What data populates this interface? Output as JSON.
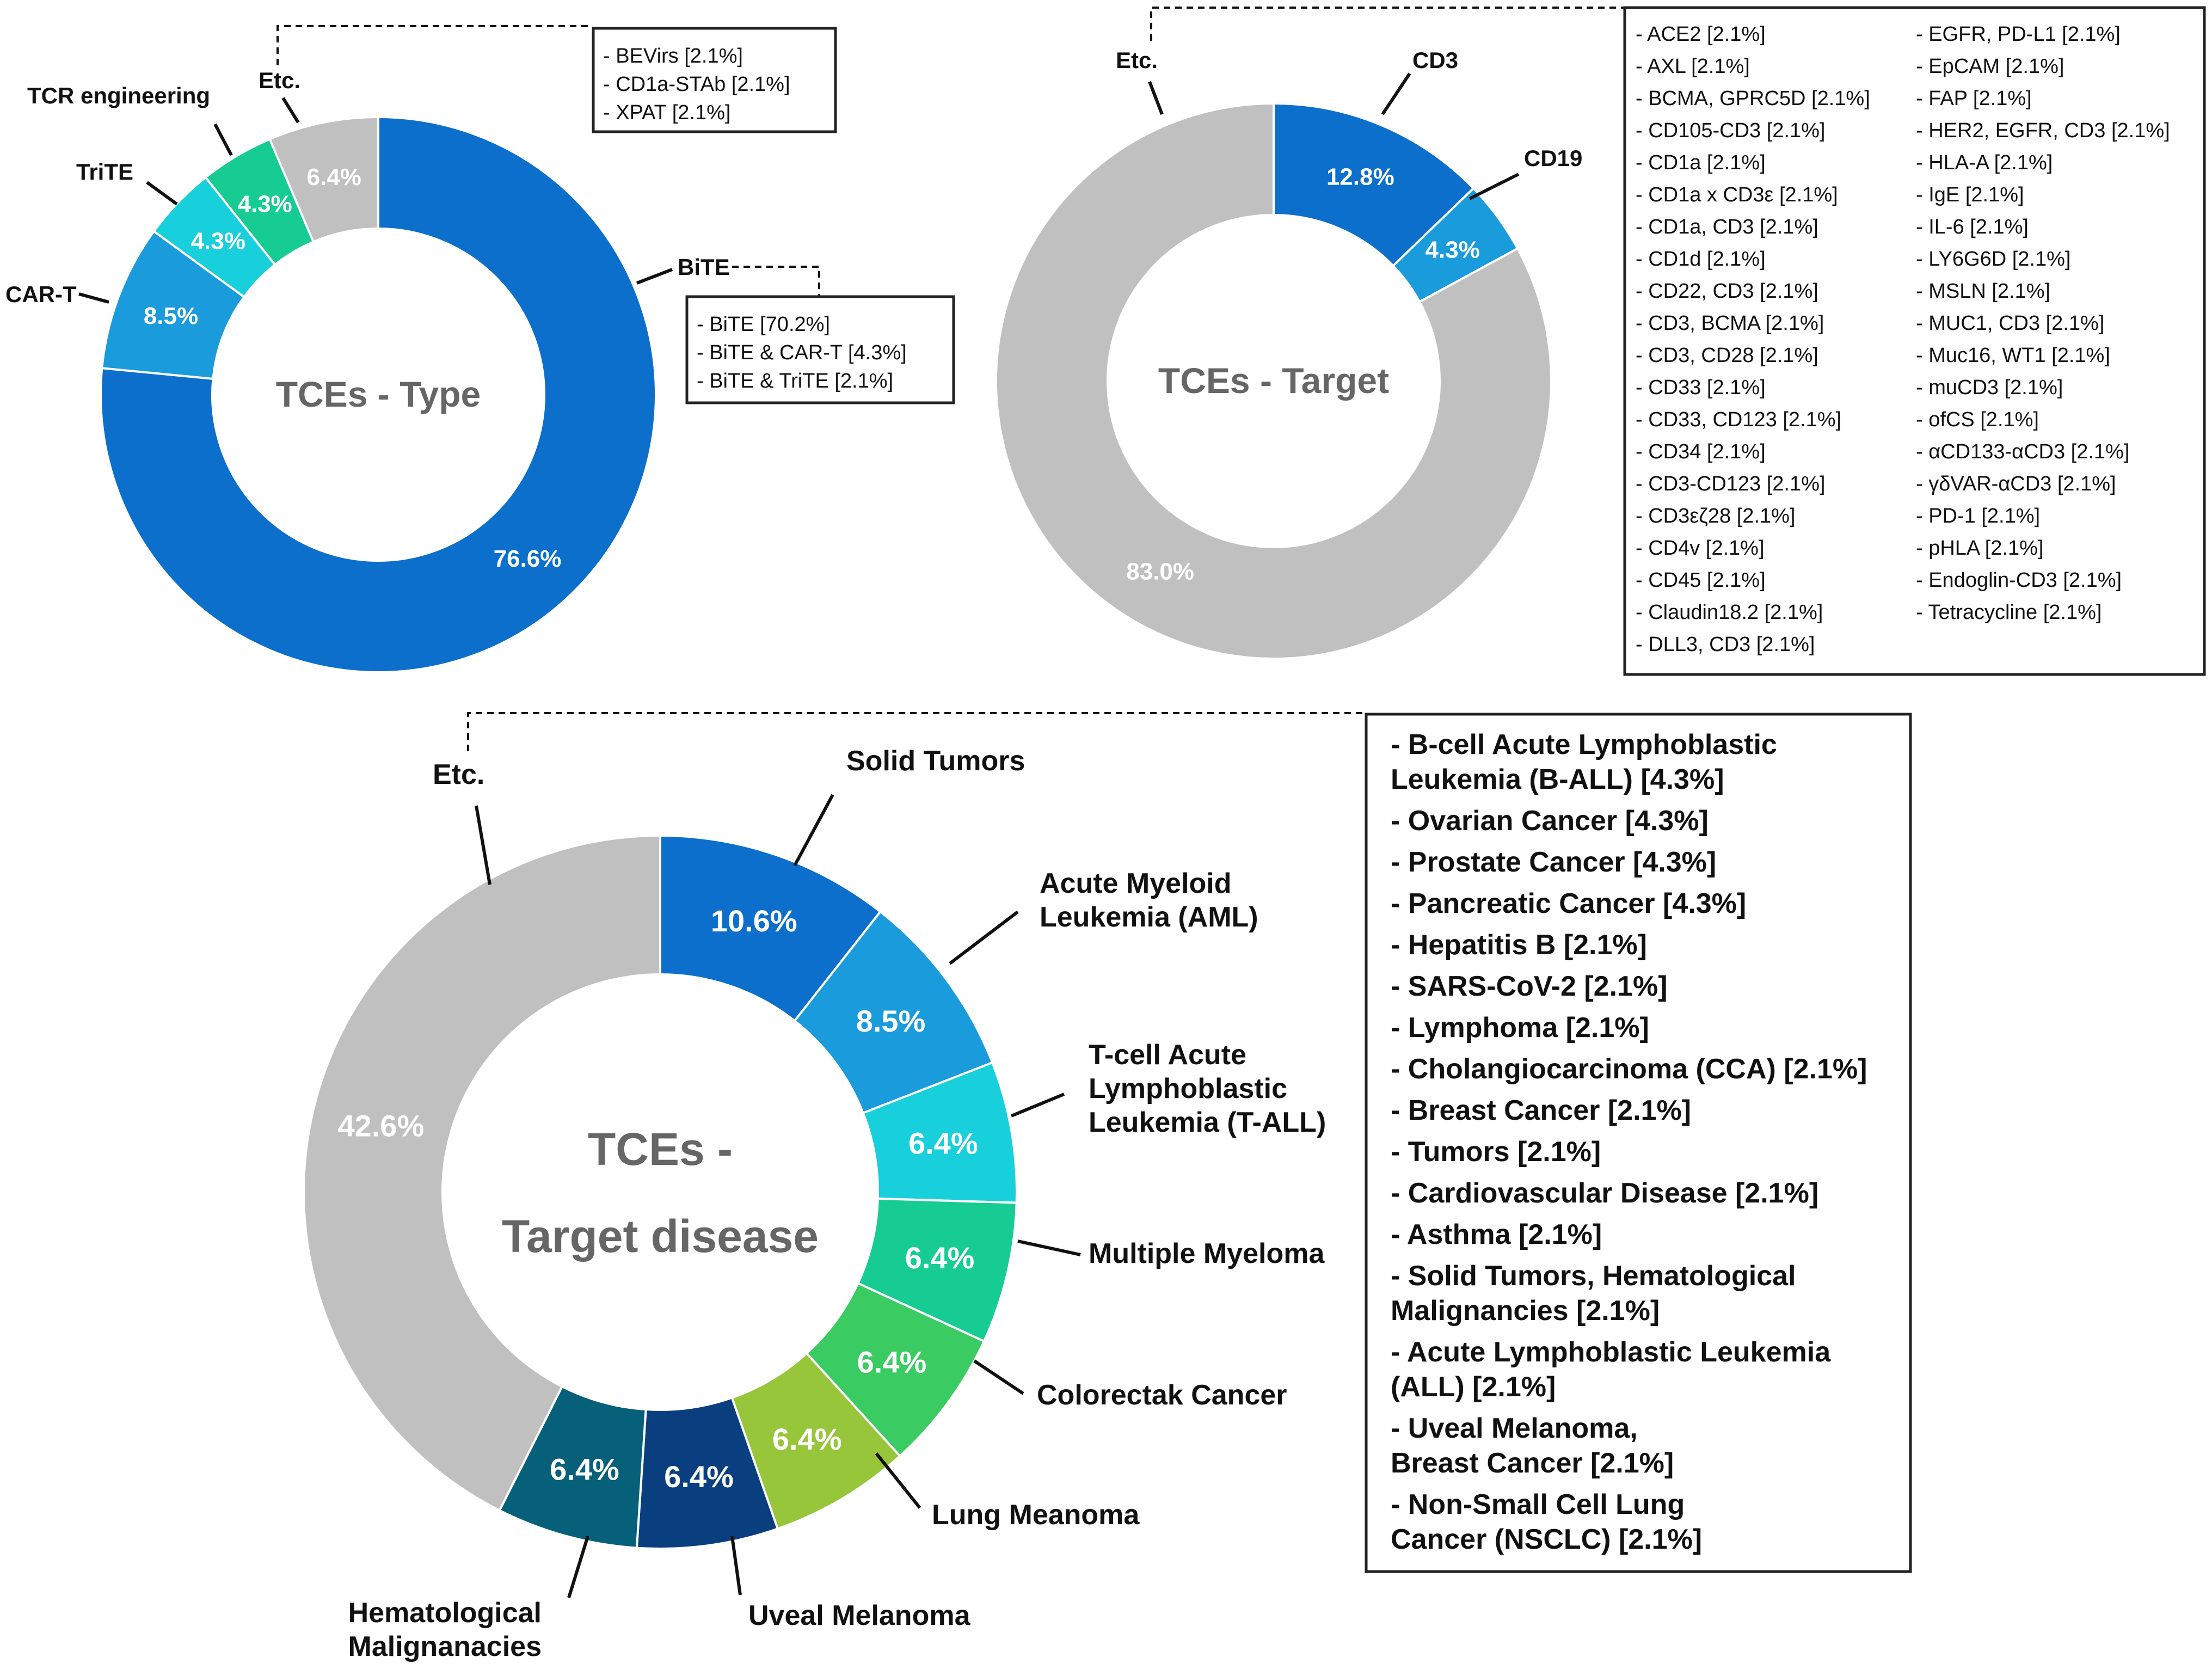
{
  "chart_data": [
    {
      "type": "pie",
      "title": "TCEs - Type",
      "center_label": "TCEs - Type",
      "categories": [
        "BiTE",
        "CAR-T",
        "TriTE",
        "TCR engineering",
        "Etc."
      ],
      "values": [
        76.6,
        8.5,
        4.3,
        4.3,
        6.4
      ],
      "value_labels": [
        "76.6%",
        "8.5%",
        "4.3%",
        "4.3%",
        "6.4%"
      ],
      "colors": [
        "#0B6FCB",
        "#1A9BDB",
        "#17D0DC",
        "#16CC92",
        "#C0C0C0"
      ],
      "detail_boxes": [
        {
          "for": "BiTE",
          "items": [
            "- BiTE [70.2%]",
            "- BiTE & CAR-T [4.3%]",
            "- BiTE & TriTE [2.1%]"
          ]
        },
        {
          "for": "Etc.",
          "items": [
            "- BEVirs [2.1%]",
            "- CD1a-STAb [2.1%]",
            "- XPAT [2.1%]"
          ]
        }
      ]
    },
    {
      "type": "pie",
      "title": "TCEs - Target",
      "center_label": "TCEs - Target",
      "categories": [
        "CD3",
        "CD19",
        "Etc."
      ],
      "values": [
        12.8,
        4.3,
        83.0
      ],
      "value_labels": [
        "12.8%",
        "4.3%",
        "83.0%"
      ],
      "colors": [
        "#0B6FCB",
        "#1A9BDB",
        "#C0C0C0"
      ],
      "detail_boxes": [
        {
          "for": "Etc.",
          "column1": [
            "- ACE2 [2.1%]",
            "- AXL [2.1%]",
            "- BCMA, GPRC5D [2.1%]",
            "- CD105-CD3 [2.1%]",
            "- CD1a [2.1%]",
            "- CD1a x CD3ε [2.1%]",
            "- CD1a, CD3 [2.1%]",
            "- CD1d [2.1%]",
            "- CD22, CD3 [2.1%]",
            "- CD3, BCMA [2.1%]",
            "- CD3, CD28 [2.1%]",
            "- CD33 [2.1%]",
            "- CD33, CD123 [2.1%]",
            "- CD34 [2.1%]",
            "- CD3-CD123 [2.1%]",
            "- CD3εζ28 [2.1%]",
            "- CD4v [2.1%]",
            "- CD45 [2.1%]",
            "- Claudin18.2 [2.1%]",
            "- DLL3, CD3 [2.1%]"
          ],
          "column2": [
            "- EGFR, PD-L1 [2.1%]",
            "- EpCAM [2.1%]",
            "- FAP [2.1%]",
            "- HER2, EGFR, CD3 [2.1%]",
            "- HLA-A [2.1%]",
            "- IgE [2.1%]",
            "- IL-6 [2.1%]",
            "- LY6G6D [2.1%]",
            "- MSLN [2.1%]",
            "- MUC1, CD3 [2.1%]",
            "- Muc16, WT1 [2.1%]",
            "- muCD3 [2.1%]",
            "- ofCS [2.1%]",
            "- αCD133-αCD3 [2.1%]",
            "- γδVAR-αCD3 [2.1%]",
            "- PD-1 [2.1%]",
            "- pHLA [2.1%]",
            "- Endoglin-CD3 [2.1%]",
            "- Tetracycline [2.1%]"
          ]
        }
      ]
    },
    {
      "type": "pie",
      "title": "TCEs - Target disease",
      "center_label_lines": [
        "TCEs -",
        "Target disease"
      ],
      "categories": [
        "Solid Tumors",
        "Acute Myeloid Leukemia (AML)",
        "T-cell Acute Lymphoblastic Leukemia (T-ALL)",
        "Multiple Myeloma",
        "Colorectak Cancer",
        "Lung Meanoma",
        "Uveal Melanoma",
        "Hematological Malignanacies",
        "Etc."
      ],
      "label_lines": [
        [
          "Solid Tumors"
        ],
        [
          "Acute Myeloid",
          "Leukemia (AML)"
        ],
        [
          "T-cell Acute",
          "Lymphoblastic",
          "Leukemia (T-ALL)"
        ],
        [
          "Multiple Myeloma"
        ],
        [
          "Colorectak Cancer"
        ],
        [
          "Lung Meanoma"
        ],
        [
          "Uveal Melanoma"
        ],
        [
          "Hematological",
          "Malignanacies"
        ],
        [
          "Etc."
        ]
      ],
      "values": [
        10.6,
        8.5,
        6.4,
        6.4,
        6.4,
        6.4,
        6.4,
        6.4,
        42.6
      ],
      "value_labels": [
        "10.6%",
        "8.5%",
        "6.4%",
        "6.4%",
        "6.4%",
        "6.4%",
        "6.4%",
        "6.4%",
        "42.6%"
      ],
      "colors": [
        "#0B6FCB",
        "#1A9BDB",
        "#17D0DC",
        "#16CC92",
        "#3ACB62",
        "#98C63B",
        "#0A3F7F",
        "#06607A",
        "#C0C0C0"
      ],
      "detail_boxes": [
        {
          "for": "Etc.",
          "items": [
            [
              "- B-cell Acute Lymphoblastic",
              "  Leukemia (B-ALL) [4.3%]"
            ],
            [
              "- Ovarian Cancer [4.3%]"
            ],
            [
              "- Prostate Cancer [4.3%]"
            ],
            [
              "- Pancreatic Cancer [4.3%]"
            ],
            [
              "- Hepatitis B [2.1%]"
            ],
            [
              "- SARS-CoV-2 [2.1%]"
            ],
            [
              "- Lymphoma [2.1%]"
            ],
            [
              "- Cholangiocarcinoma (CCA) [2.1%]"
            ],
            [
              "- Breast Cancer [2.1%]"
            ],
            [
              "- Tumors [2.1%]"
            ],
            [
              "- Cardiovascular Disease [2.1%]"
            ],
            [
              "- Asthma [2.1%]"
            ],
            [
              "- Solid Tumors, Hematological",
              "  Malignancies [2.1%]"
            ],
            [
              "- Acute Lymphoblastic Leukemia",
              "  (ALL) [2.1%]"
            ],
            [
              "- Uveal Melanoma,",
              "  Breast Cancer [2.1%]"
            ],
            [
              "- Non-Small Cell Lung",
              "  Cancer (NSCLC) [2.1%]"
            ]
          ]
        }
      ]
    }
  ]
}
